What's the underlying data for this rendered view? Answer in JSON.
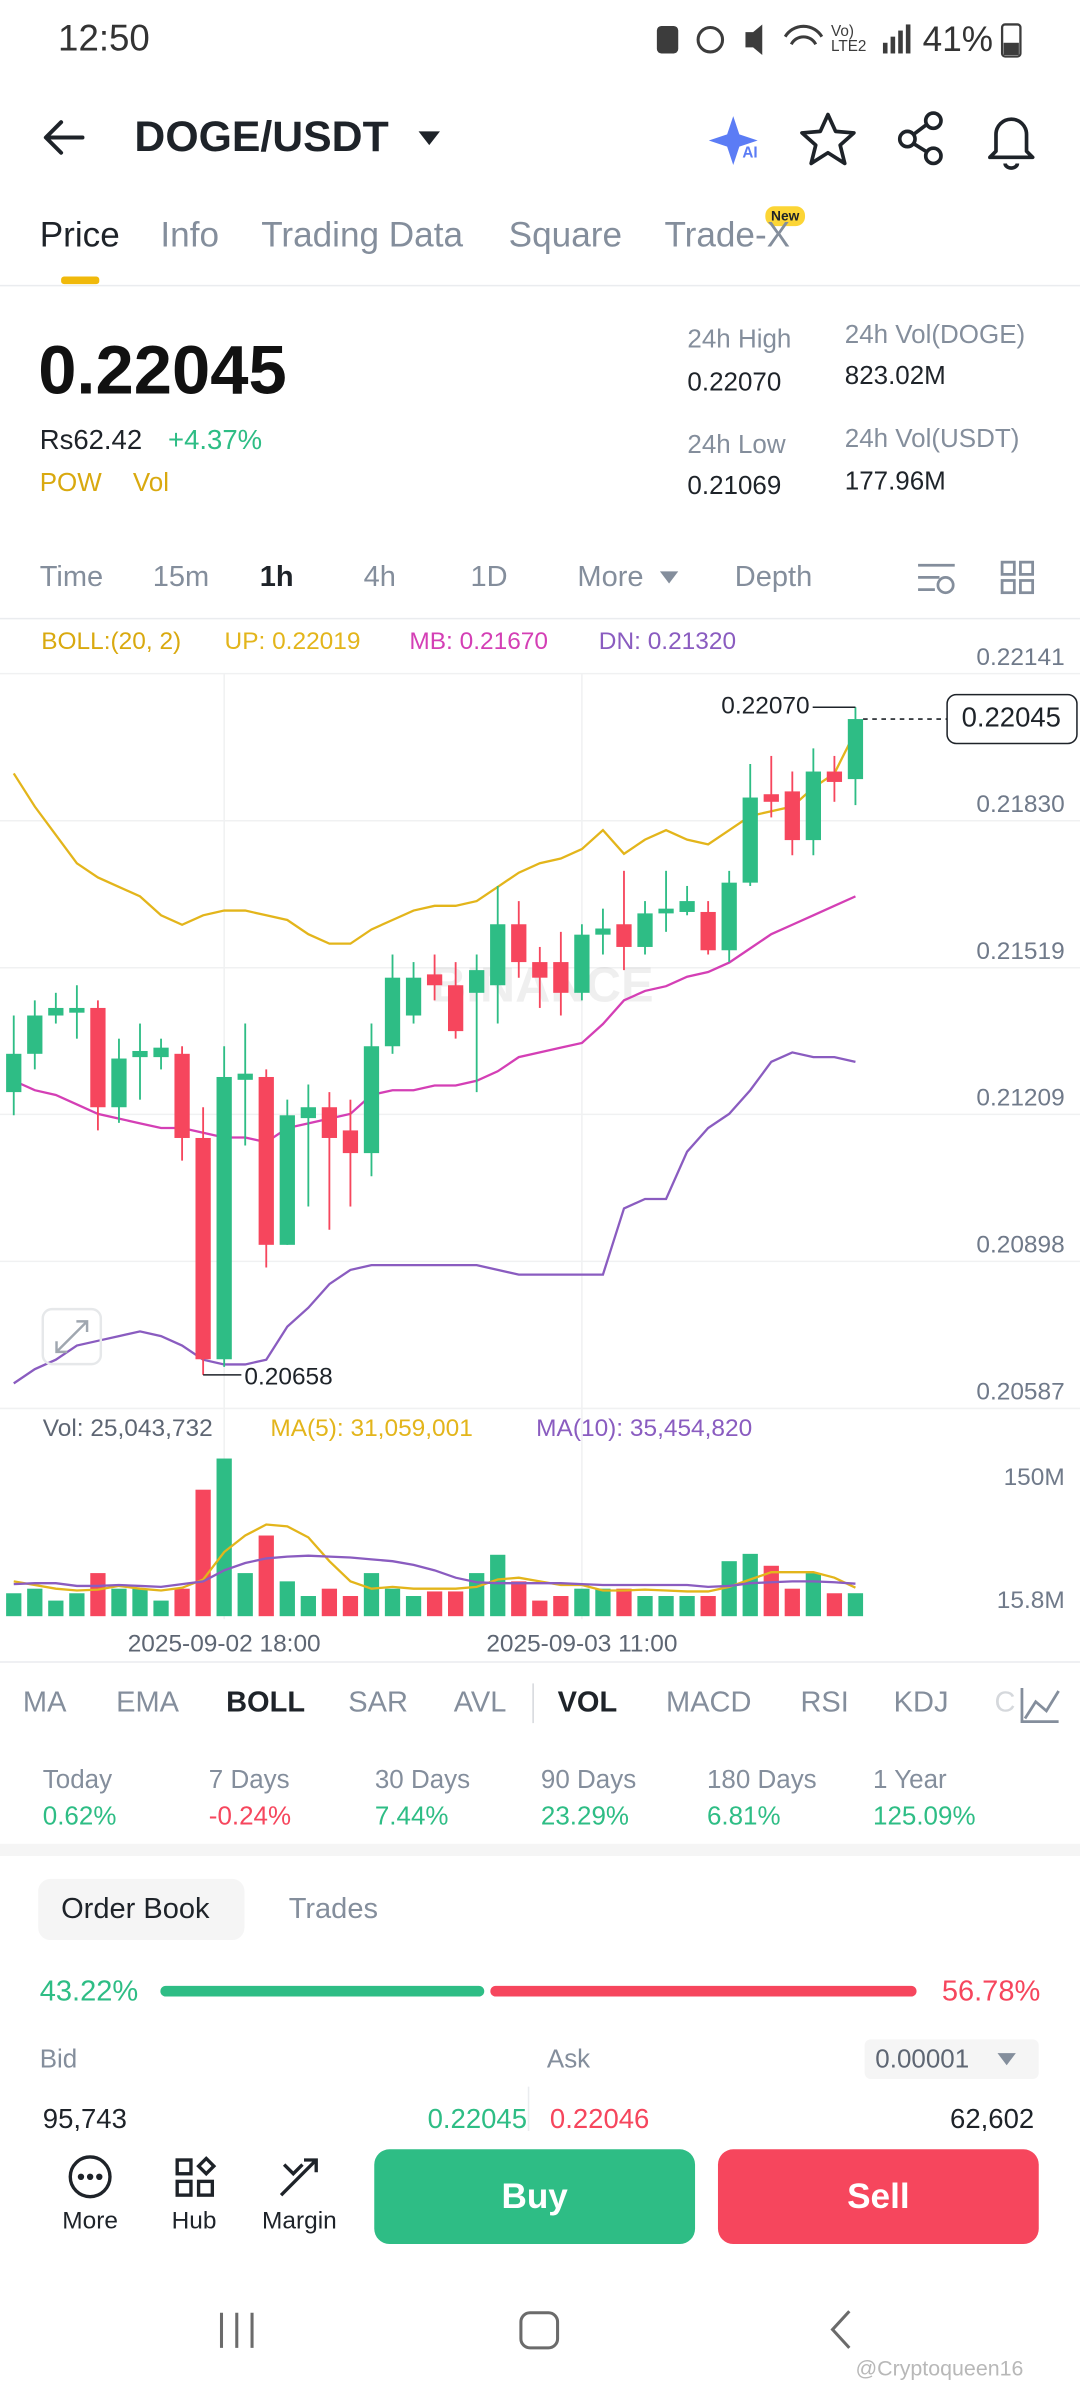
{
  "status_bar": {
    "time": "12:50",
    "network": "Vo) LTE2",
    "battery": "41%"
  },
  "header": {
    "pair": "DOGE/USDT",
    "ai_badge": "AI"
  },
  "tabs": {
    "items": [
      "Price",
      "Info",
      "Trading Data",
      "Square",
      "Trade-X"
    ],
    "new_badge": "New"
  },
  "price": {
    "last": "0.22045",
    "fiat": "Rs62.42",
    "change": "+4.37%",
    "tags": [
      "POW",
      "Vol"
    ],
    "stats": [
      {
        "label": "24h High",
        "value": "0.22070"
      },
      {
        "label": "24h Vol(DOGE)",
        "value": "823.02M"
      },
      {
        "label": "24h Low",
        "value": "0.21069"
      },
      {
        "label": "24h Vol(USDT)",
        "value": "177.96M"
      }
    ]
  },
  "intervals": [
    "Time",
    "15m",
    "1h",
    "4h",
    "1D",
    "More",
    "Depth"
  ],
  "chart_data": {
    "type": "candlestick",
    "legend": {
      "boll": "BOLL:(20, 2)"
    },
    "categories": [
      null,
      null,
      null,
      null,
      null,
      null,
      null,
      null,
      null,
      null,
      "2025-09-02 18:00",
      null,
      null,
      null,
      null,
      null,
      null,
      null,
      null,
      null,
      null,
      null,
      null,
      null,
      null,
      null,
      null,
      "2025-09-03 11:00",
      null,
      null,
      null,
      null,
      null,
      null,
      null,
      null,
      null,
      null,
      null,
      null,
      null
    ],
    "open": [
      0.21256,
      0.21337,
      0.21418,
      0.21424,
      0.21434,
      0.21224,
      0.2133,
      0.2133,
      0.21337,
      0.21159,
      0.20691,
      0.21282,
      0.21288,
      0.20933,
      0.21201,
      0.21224,
      0.21175,
      0.21127,
      0.21353,
      0.21418,
      0.21505,
      0.21482,
      0.21466,
      0.21482,
      0.21611,
      0.21531,
      0.21531,
      0.21466,
      0.21589,
      0.21611,
      0.21563,
      0.21634,
      0.21637,
      0.21637,
      0.21556,
      0.21699,
      0.21886,
      0.21892,
      0.21789,
      0.21934,
      0.21918
    ],
    "high": [
      0.21418,
      0.2145,
      0.21466,
      0.21482,
      0.2145,
      0.21369,
      0.21401,
      0.21369,
      0.21353,
      0.21224,
      0.21353,
      0.21401,
      0.21304,
      0.2124,
      0.21272,
      0.21256,
      0.2124,
      0.21401,
      0.21547,
      0.21531,
      0.21547,
      0.21531,
      0.21547,
      0.21692,
      0.2166,
      0.21563,
      0.21595,
      0.21611,
      0.21644,
      0.21724,
      0.2166,
      0.21724,
      0.21692,
      0.2166,
      0.21724,
      0.2195,
      0.21967,
      0.21934,
      0.21983,
      0.21967,
      0.2207
    ],
    "low": [
      0.21207,
      0.21304,
      0.21401,
      0.21369,
      0.21175,
      0.21191,
      0.2124,
      0.21304,
      0.21111,
      0.20658,
      0.20675,
      0.21143,
      0.20885,
      0.20933,
      0.21014,
      0.20965,
      0.21014,
      0.21078,
      0.21337,
      0.21401,
      0.2145,
      0.21369,
      0.21256,
      0.21401,
      0.21498,
      0.21434,
      0.21418,
      0.2145,
      0.21547,
      0.21514,
      0.21547,
      0.21595,
      0.2163,
      0.21547,
      0.21531,
      0.21692,
      0.21837,
      0.21757,
      0.21757,
      0.2187,
      0.21863
    ],
    "close": [
      0.21337,
      0.21418,
      0.21434,
      0.21434,
      0.21224,
      0.21327,
      0.21343,
      0.2135,
      0.21159,
      0.20691,
      0.21288,
      0.21295,
      0.20933,
      0.21207,
      0.21224,
      0.21159,
      0.21127,
      0.21353,
      0.21498,
      0.21498,
      0.21482,
      0.21385,
      0.21514,
      0.21611,
      0.21531,
      0.21498,
      0.21466,
      0.21589,
      0.21602,
      0.21563,
      0.21634,
      0.21644,
      0.2166,
      0.21556,
      0.21699,
      0.21879,
      0.2187,
      0.21789,
      0.21934,
      0.21912,
      0.22045
    ],
    "up_color": "#2ebd85",
    "down_color": "#f6465d",
    "overlays": [
      {
        "label": "UP: 0.22019",
        "color": "#e3b51b",
        "values": [
          0.2193,
          0.2186,
          0.218,
          0.2174,
          0.2171,
          0.2169,
          0.2167,
          0.2163,
          0.2161,
          0.2163,
          0.2164,
          0.2164,
          0.2163,
          0.2162,
          0.2159,
          0.2157,
          0.2157,
          0.216,
          0.2162,
          0.2164,
          0.2165,
          0.2165,
          0.2166,
          0.2169,
          0.2172,
          0.2174,
          0.2175,
          0.2177,
          0.2181,
          0.2176,
          0.2179,
          0.2181,
          0.2179,
          0.2178,
          0.2181,
          0.2184,
          0.2185,
          0.2186,
          0.219,
          0.2193,
          0.22019
        ]
      },
      {
        "label": "MB: 0.21670",
        "color": "#d43fb5",
        "values": [
          0.2128,
          0.2126,
          0.2125,
          0.2123,
          0.2121,
          0.212,
          0.2119,
          0.2118,
          0.2118,
          0.2117,
          0.2116,
          0.2116,
          0.2115,
          0.2118,
          0.2119,
          0.212,
          0.2121,
          0.2125,
          0.2126,
          0.2126,
          0.2127,
          0.2127,
          0.2128,
          0.213,
          0.2133,
          0.2134,
          0.2135,
          0.2136,
          0.214,
          0.2145,
          0.2147,
          0.2148,
          0.215,
          0.2151,
          0.2153,
          0.2156,
          0.2159,
          0.2161,
          0.2163,
          0.2165,
          0.2167
        ]
      },
      {
        "label": "DN: 0.21320",
        "color": "#8a5cc0",
        "values": [
          0.2064,
          0.2067,
          0.2069,
          0.2072,
          0.2073,
          0.2074,
          0.2075,
          0.2074,
          0.2072,
          0.2069,
          0.2068,
          0.2068,
          0.2069,
          0.2076,
          0.208,
          0.2085,
          0.2088,
          0.2089,
          0.2089,
          0.2089,
          0.2089,
          0.2089,
          0.2089,
          0.2088,
          0.2087,
          0.2087,
          0.2087,
          0.2087,
          0.2087,
          0.2101,
          0.2103,
          0.2103,
          0.2113,
          0.2118,
          0.2121,
          0.2126,
          0.2132,
          0.2134,
          0.2133,
          0.2133,
          0.2132
        ]
      }
    ],
    "ylim": [
      0.20587,
      0.22141
    ],
    "yticks": [
      0.22141,
      {
        "value": 0.2183,
        "label": "0.21830"
      },
      0.21519,
      0.21209,
      0.20898,
      0.20587
    ],
    "grid": true,
    "last_price_label": "0.22045",
    "high_label": "0.22070",
    "low_label": "0.20658",
    "watermark": "BINANCE",
    "volume": {
      "label": "Vol: 25,043,732",
      "values": [
        25000000,
        30000000,
        17000000,
        25000000,
        47000000,
        30000000,
        30000000,
        17000000,
        30000000,
        138000000,
        172000000,
        47000000,
        88000000,
        38000000,
        22000000,
        30000000,
        22000000,
        47000000,
        30000000,
        22000000,
        27000000,
        27000000,
        47000000,
        67000000,
        38000000,
        17000000,
        22000000,
        30000000,
        30000000,
        30000000,
        22000000,
        22000000,
        22000000,
        22000000,
        60000000,
        68000000,
        55000000,
        30000000,
        47000000,
        25000000,
        25043732
      ],
      "lines": [
        {
          "label": "MA(5): 31,059,001",
          "color": "#e3b51b",
          "values": [
            38000000,
            34000000,
            30000000,
            28000000,
            29000000,
            33000000,
            30000000,
            28000000,
            31000000,
            40000000,
            70000000,
            88000000,
            100000000,
            98000000,
            86000000,
            60000000,
            38000000,
            30000000,
            32000000,
            30000000,
            30000000,
            30000000,
            32000000,
            40000000,
            42000000,
            38000000,
            34000000,
            34000000,
            28000000,
            28000000,
            29000000,
            28000000,
            27000000,
            27000000,
            32000000,
            40000000,
            48000000,
            48000000,
            48000000,
            42000000,
            31059001
          ]
        },
        {
          "label": "MA(10): 35,454,820",
          "color": "#8a5cc0",
          "values": [
            35000000,
            36000000,
            36000000,
            33000000,
            33000000,
            34000000,
            33000000,
            32000000,
            35000000,
            38000000,
            50000000,
            58000000,
            63000000,
            65000000,
            66000000,
            65000000,
            64000000,
            62000000,
            60000000,
            56000000,
            50000000,
            42000000,
            37000000,
            36000000,
            36000000,
            36000000,
            36000000,
            35000000,
            34000000,
            34000000,
            34000000,
            34000000,
            34000000,
            32000000,
            33000000,
            36000000,
            37000000,
            38000000,
            38000000,
            37000000,
            35454820
          ]
        }
      ],
      "ylim": [
        0,
        180000000
      ],
      "yticks": [
        {
          "value": 150000000,
          "label": "150M"
        },
        {
          "value": 15800000,
          "label": "15.8M"
        }
      ]
    }
  },
  "indicators": [
    "MA",
    "EMA",
    "BOLL",
    "SAR",
    "AVL",
    "VOL",
    "MACD",
    "RSI",
    "KDJ",
    "C"
  ],
  "performance": [
    {
      "label": "Today",
      "value": "0.62%"
    },
    {
      "label": "7 Days",
      "value": "-0.24%"
    },
    {
      "label": "30 Days",
      "value": "7.44%"
    },
    {
      "label": "90 Days",
      "value": "23.29%"
    },
    {
      "label": "180 Days",
      "value": "6.81%"
    },
    {
      "label": "1 Year",
      "value": "125.09%"
    }
  ],
  "order_book": {
    "tabs": [
      "Order Book",
      "Trades"
    ],
    "ratio": {
      "values": [
        43.22,
        56.78
      ],
      "value_labels": [
        "43.22%",
        "56.78%"
      ]
    },
    "bid_header": "Bid",
    "ask_header": "Ask",
    "precision": "0.00001",
    "row": [
      "95,743",
      "0.22045",
      "0.22046",
      "62,602"
    ]
  },
  "bottom_bar": {
    "items": [
      "More",
      "Hub",
      "Margin"
    ],
    "buy": "Buy",
    "sell": "Sell"
  },
  "watermark": "@Cryptoqueen16"
}
